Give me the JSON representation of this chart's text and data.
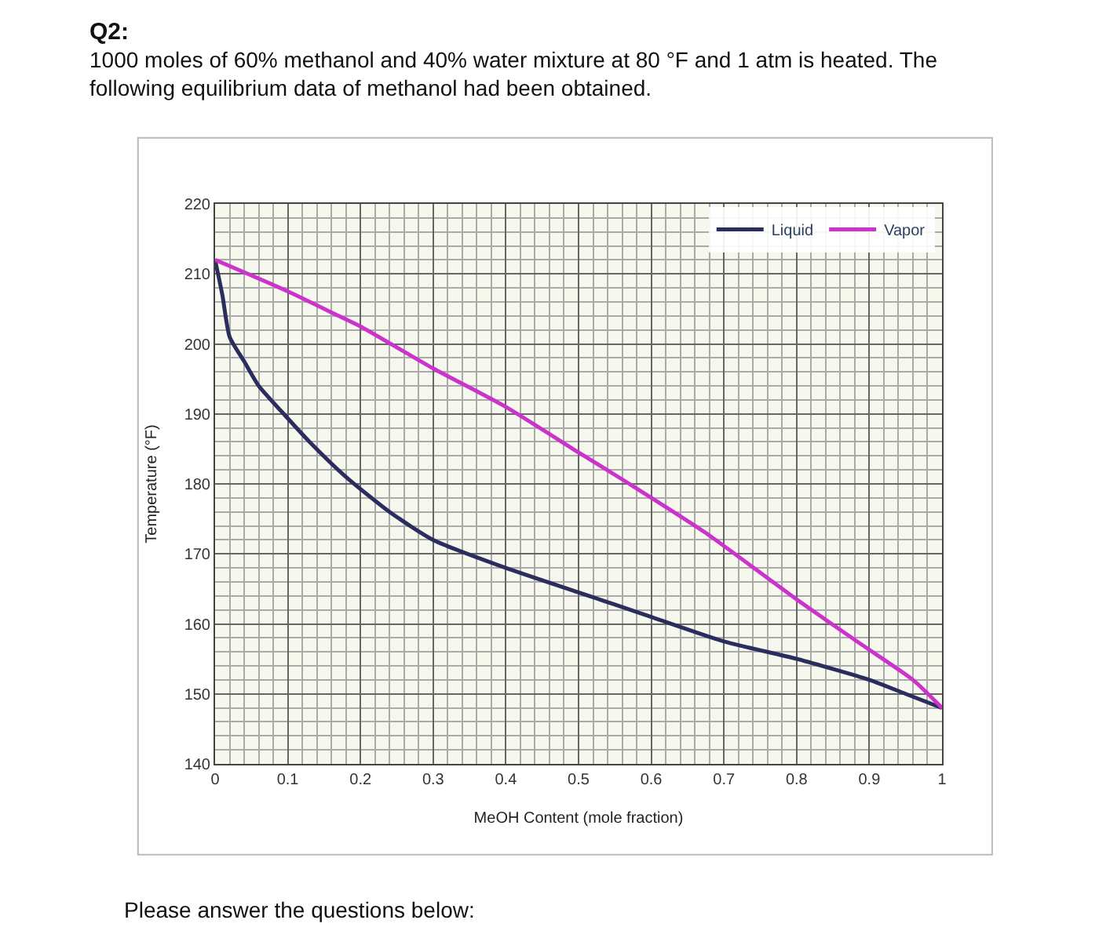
{
  "chart_data": {
    "type": "line",
    "title": "Q2:",
    "subtitle": "1000 moles of 60% methanol and 40% water mixture at 80 °F and 1 atm is heated. The following equilibrium data of methanol had been obtained.",
    "xlabel": "MeOH Content (mole fraction)",
    "ylabel": "Temperature (°F)",
    "annotations": [
      "Please answer the questions below:"
    ],
    "series": [
      {
        "name": "Liquid",
        "color": "#2b2d5e",
        "x": [
          0,
          0.01,
          0.02,
          0.04,
          0.06,
          0.09,
          0.13,
          0.18,
          0.24,
          0.3,
          0.4,
          0.5,
          0.6,
          0.7,
          0.8,
          0.9,
          0.95,
          1
        ],
        "values": [
          212,
          207,
          201,
          197.5,
          194,
          190.5,
          186,
          181,
          176,
          172,
          168,
          164.5,
          161,
          157.5,
          155,
          152,
          150,
          148
        ]
      },
      {
        "name": "Vapor",
        "color": "#cc33cc",
        "x": [
          0,
          0.1,
          0.17,
          0.2,
          0.3,
          0.4,
          0.5,
          0.57,
          0.675,
          0.8,
          0.89,
          0.96,
          1
        ],
        "values": [
          212,
          207.5,
          204,
          202.5,
          196.5,
          191,
          184.5,
          180,
          173,
          163.5,
          157,
          152,
          148
        ]
      }
    ],
    "xlim": [
      0,
      1
    ],
    "xticks": [
      0,
      0.1,
      0.2,
      0.3,
      0.4,
      0.5,
      0.6,
      0.7,
      0.8,
      0.9,
      1
    ],
    "ylim": [
      140,
      220
    ],
    "yticks": [
      140,
      150,
      160,
      170,
      180,
      190,
      200,
      210,
      220
    ],
    "grid": true,
    "legend": "top right",
    "marker": "none",
    "line_style": "solid"
  }
}
